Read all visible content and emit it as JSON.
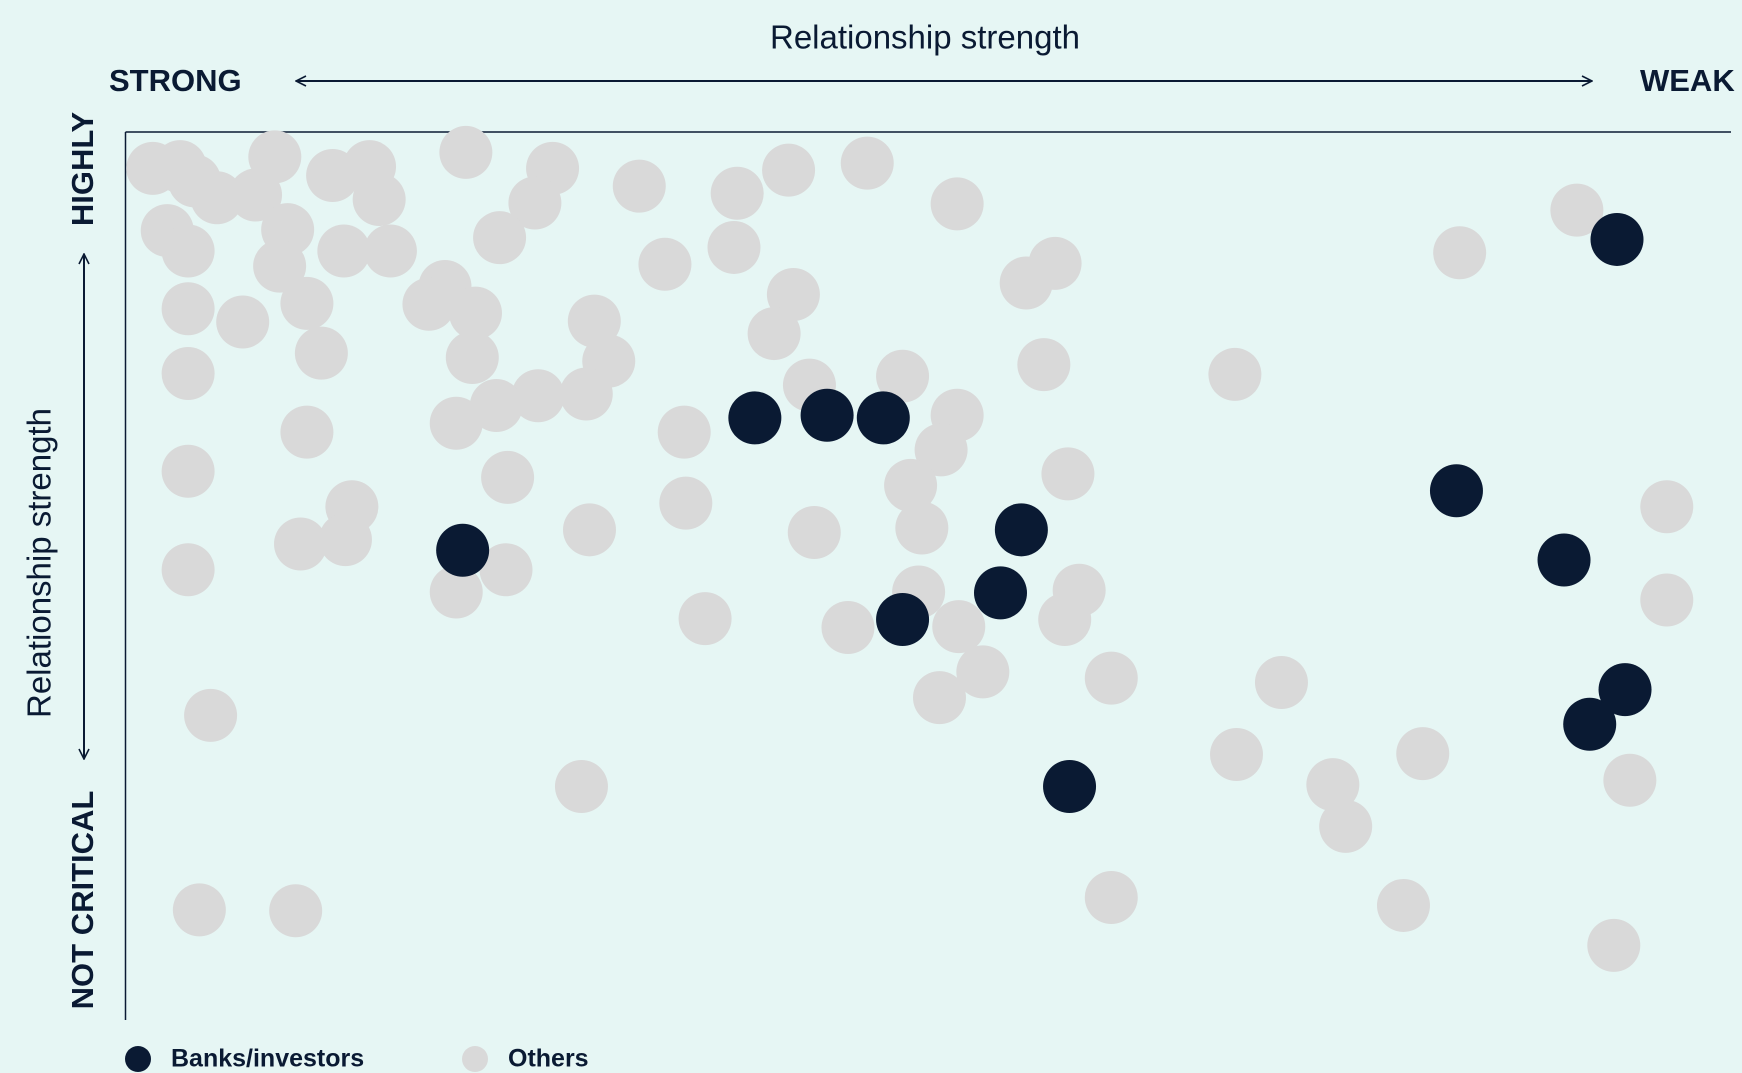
{
  "chart_data": {
    "type": "scatter",
    "xlabel": "Relationship strength",
    "ylabel": "Relationship strength",
    "x_ends": [
      "STRONG",
      "WEAK"
    ],
    "y_ends": [
      "HIGHLY",
      "NOT CRITICAL"
    ],
    "xlim": [
      0,
      100
    ],
    "ylim": [
      0,
      100
    ],
    "series": [
      {
        "name": "Banks/investors",
        "color": "#0a1a33",
        "x": [
          92.9,
          39.2,
          43.7,
          47.2,
          82.9,
          21.0,
          55.8,
          89.6,
          54.5,
          48.4,
          93.4,
          91.2,
          58.8
        ],
        "values": [
          87.9,
          67.8,
          68.1,
          67.8,
          59.6,
          52.9,
          55.2,
          51.8,
          48.1,
          45.1,
          37.2,
          33.3,
          26.3
        ]
      },
      {
        "name": "Others",
        "color": "#d9d9d9",
        "x": [
          1.7,
          3.4,
          4.3,
          5.7,
          8.1,
          9.3,
          12.9,
          15.2,
          15.8,
          2.6,
          3.9,
          10.1,
          9.6,
          13.6,
          16.5,
          3.9,
          7.3,
          11.3,
          12.2,
          3.9,
          21.2,
          26.6,
          25.5,
          23.3,
          19.9,
          18.9,
          21.8,
          21.6,
          32.0,
          38.1,
          41.3,
          46.2,
          51.8,
          33.6,
          37.9,
          41.6,
          40.4,
          29.2,
          30.1,
          28.7,
          25.7,
          23.1,
          20.6,
          42.6,
          48.4,
          34.8,
          51.8,
          50.8,
          48.9,
          56.1,
          57.9,
          57.2,
          11.3,
          3.9,
          23.8,
          14.1,
          10.9,
          13.7,
          3.9,
          23.7,
          20.6,
          28.9,
          34.9,
          42.9,
          49.6,
          58.7,
          49.4,
          51.9,
          45.0,
          36.1,
          59.4,
          58.5,
          53.4,
          50.7,
          61.4,
          72.0,
          69.1,
          83.1,
          90.4,
          96.0,
          96.0,
          69.2,
          75.2,
          76.0,
          80.8,
          93.7,
          5.3,
          28.4,
          61.4,
          79.6,
          92.7,
          4.6,
          10.6
        ],
        "values": [
          95.9,
          96.1,
          94.5,
          92.6,
          92.9,
          97.2,
          95.1,
          96.1,
          92.4,
          88.9,
          86.6,
          89.0,
          84.9,
          86.6,
          86.6,
          80.1,
          78.6,
          80.7,
          75.1,
          72.8,
          97.7,
          95.9,
          92.0,
          88.1,
          82.6,
          80.6,
          79.6,
          74.6,
          93.9,
          93.1,
          95.7,
          96.5,
          91.9,
          85.1,
          87.0,
          81.7,
          77.3,
          78.7,
          74.2,
          70.5,
          70.3,
          69.2,
          67.2,
          71.5,
          72.5,
          66.2,
          68.1,
          64.2,
          60.2,
          83.0,
          85.2,
          73.8,
          66.2,
          61.8,
          61.1,
          57.8,
          53.6,
          54.1,
          50.7,
          50.7,
          48.2,
          55.2,
          58.2,
          54.9,
          55.4,
          61.5,
          48.2,
          44.3,
          44.2,
          45.2,
          48.4,
          45.1,
          39.2,
          36.3,
          38.5,
          38.0,
          72.7,
          86.4,
          91.2,
          57.8,
          47.3,
          29.9,
          26.5,
          21.8,
          30.0,
          27.0,
          34.3,
          26.3,
          13.8,
          12.9,
          8.4,
          12.4,
          12.3
        ]
      }
    ]
  }
}
